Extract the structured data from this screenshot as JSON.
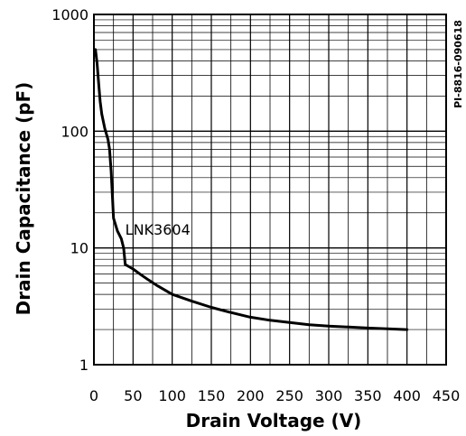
{
  "chart_data": {
    "type": "line",
    "title": "",
    "xlabel": "Drain Voltage (V)",
    "ylabel": "Drain Capacitance (pF)",
    "xlim": [
      0,
      450
    ],
    "ylim": [
      1,
      1000
    ],
    "yscale": "log",
    "grid": true,
    "x_ticks": [
      "0",
      "50",
      "100",
      "150",
      "200",
      "250",
      "300",
      "350",
      "400",
      "450"
    ],
    "y_ticks": [
      "1",
      "10",
      "100",
      "1000"
    ],
    "annotation": "LNK3604",
    "figure_id": "PI-8816-090618",
    "series": [
      {
        "color": "#000000",
        "x": [
          2,
          4,
          6,
          8,
          10,
          14,
          18,
          20,
          22,
          25,
          30,
          35,
          38,
          40,
          45,
          50,
          60,
          70,
          80,
          100,
          125,
          150,
          175,
          200,
          225,
          250,
          275,
          300,
          325,
          350,
          375,
          400
        ],
        "y": [
          500,
          380,
          260,
          180,
          140,
          105,
          85,
          70,
          45,
          18,
          14,
          12,
          10,
          7.2,
          6.9,
          6.6,
          5.9,
          5.3,
          4.8,
          4.0,
          3.5,
          3.1,
          2.8,
          2.55,
          2.4,
          2.3,
          2.2,
          2.14,
          2.1,
          2.06,
          2.03,
          2.0
        ]
      }
    ]
  }
}
